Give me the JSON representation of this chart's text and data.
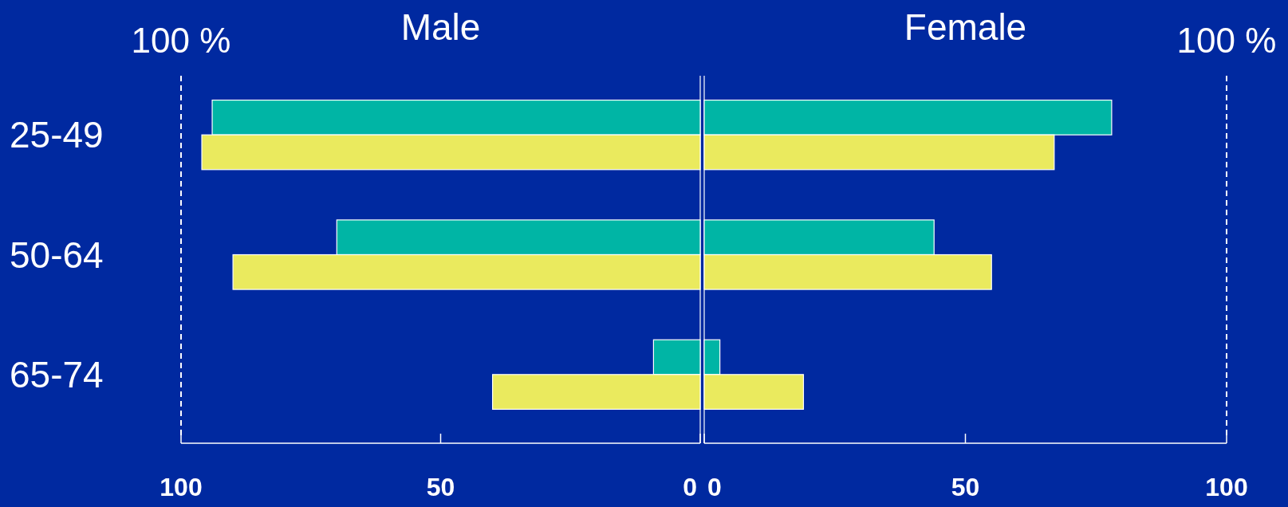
{
  "chart_data": [
    {
      "type": "bar",
      "orientation": "horizontal",
      "title": "Male",
      "categories": [
        "25-49",
        "50-64",
        "65-74"
      ],
      "series": [
        {
          "color": "#00b5a5",
          "values": [
            94,
            70,
            9
          ]
        },
        {
          "color": "#eaea5e",
          "values": [
            96,
            90,
            40
          ]
        }
      ],
      "xlim": [
        100,
        0
      ],
      "xticks": [
        100,
        50,
        0
      ],
      "ref_lines": [
        {
          "axis": "x",
          "value": 100,
          "label": "100 %",
          "line_style": "dashed"
        }
      ]
    },
    {
      "type": "bar",
      "orientation": "horizontal",
      "title": "Female",
      "categories": [
        null,
        null,
        null
      ],
      "series": [
        {
          "color": "#00b5a5",
          "values": [
            78,
            44,
            3
          ]
        },
        {
          "color": "#eaea5e",
          "values": [
            67,
            55,
            19
          ]
        }
      ],
      "xlim": [
        0,
        100
      ],
      "xticks": [
        0,
        50,
        100
      ],
      "tick_labels": "x",
      "ref_lines": [
        {
          "axis": "x",
          "value": 100,
          "label": "100 %",
          "line_style": "dashed"
        }
      ]
    }
  ]
}
